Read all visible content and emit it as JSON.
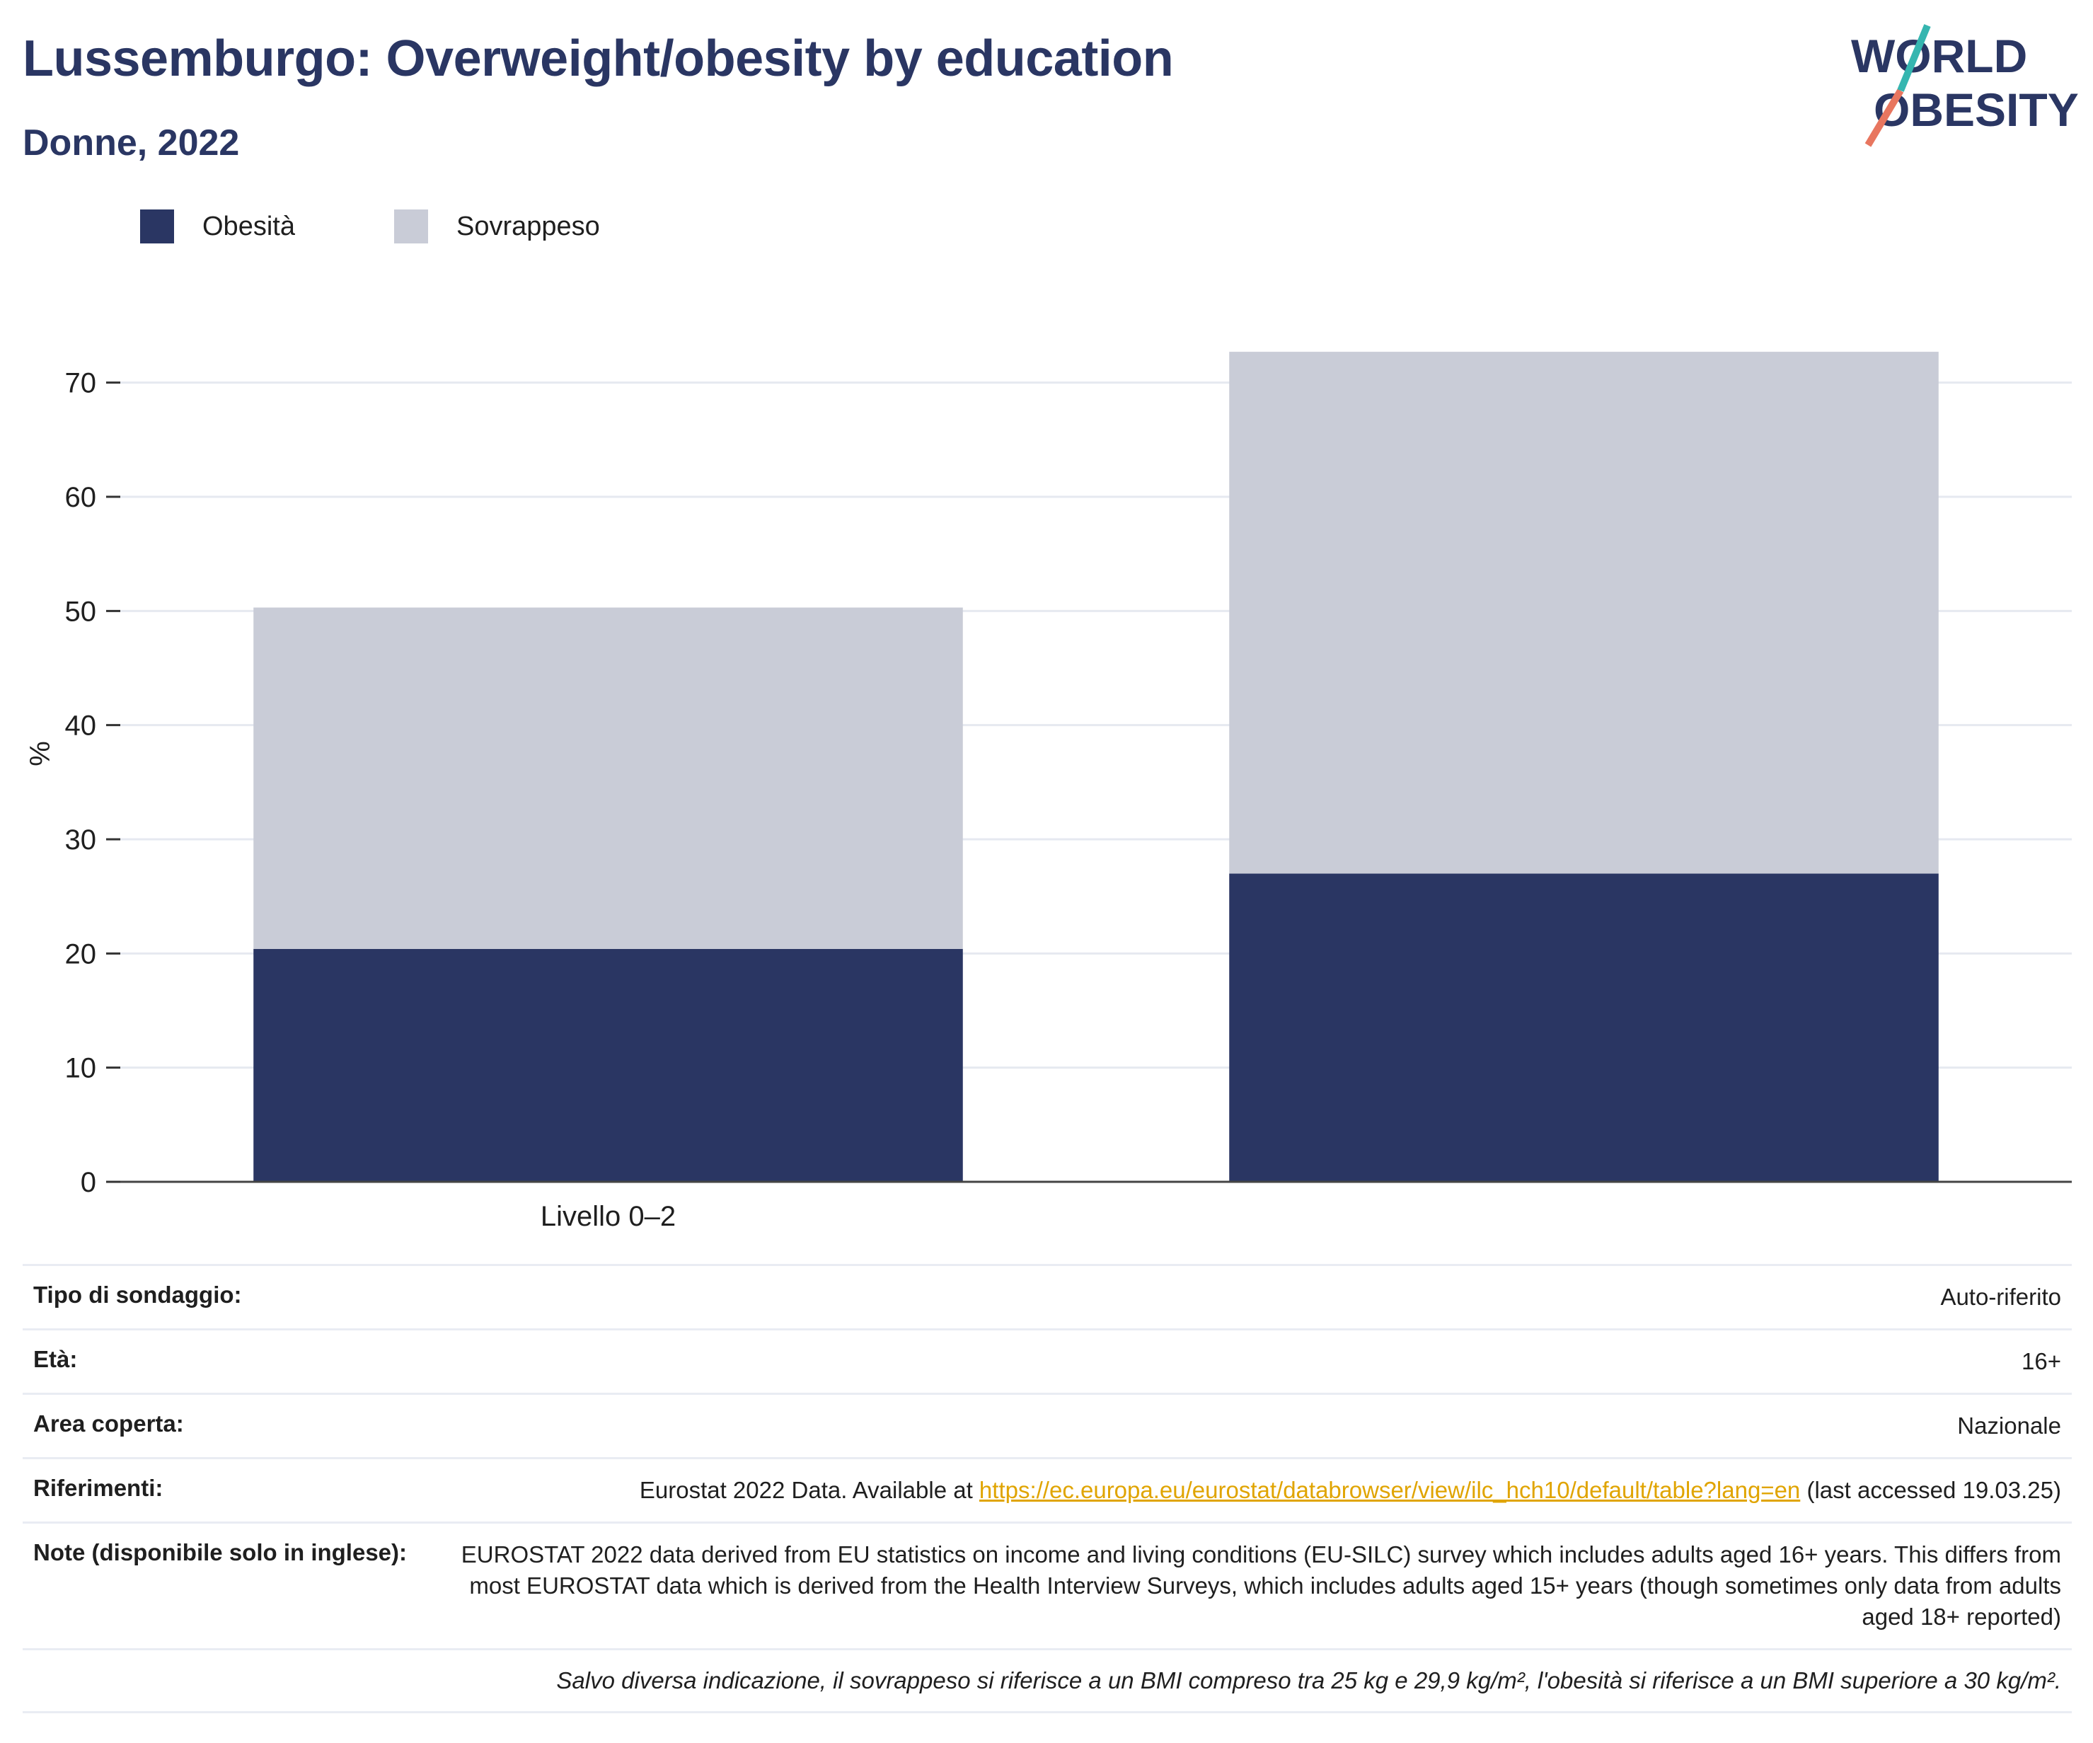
{
  "header": {
    "title": "Lussemburgo: Overweight/obesity by education",
    "subtitle": "Donne, 2022"
  },
  "logo": {
    "line1": "WORLD",
    "line2": "OBESITY"
  },
  "legend": [
    {
      "label": "Obesità",
      "color": "#2a3663"
    },
    {
      "label": "Sovrappeso",
      "color": "#c9ccd7"
    }
  ],
  "chart_data": {
    "type": "bar",
    "stacked": true,
    "categories": [
      "Livello 0–2",
      ""
    ],
    "series": [
      {
        "name": "Obesità",
        "values": [
          20.4,
          27.0
        ],
        "color": "#2a3663"
      },
      {
        "name": "Sovrappeso",
        "values": [
          29.9,
          45.7
        ],
        "color": "#c9ccd7"
      }
    ],
    "ylabel": "%",
    "ylim": [
      0,
      75
    ],
    "yticks": [
      0,
      10,
      20,
      30,
      40,
      50,
      60,
      70
    ],
    "grid": true,
    "legend_position": "top-left"
  },
  "meta": {
    "survey_label": "Tipo di sondaggio:",
    "survey_value": "Auto-riferito",
    "age_label": "Età:",
    "age_value": "16+",
    "area_label": "Area coperta:",
    "area_value": "Nazionale",
    "refs_label": "Riferimenti:",
    "refs_prefix": "Eurostat 2022 Data. Available at",
    "refs_link": "https://ec.europa.eu/eurostat/databrowser/view/ilc_hch10/default/table?lang=en",
    "refs_suffix": "(last accessed 19.03.25)",
    "notes_label": "Note (disponibile solo in inglese):",
    "notes_value": "EUROSTAT 2022 data derived from EU statistics on income and living conditions (EU-SILC) survey which includes adults aged 16+ years. This differs from most EUROSTAT data which is derived from the Health Interview Surveys, which includes adults aged 15+ years (though sometimes only data from adults aged 18+ reported)",
    "footnote": "Salvo diversa indicazione, il sovrappeso si riferisce a un BMI compreso tra 25 kg e 29,9 kg/m², l'obesità si riferisce a un BMI superiore a 30 kg/m²."
  }
}
